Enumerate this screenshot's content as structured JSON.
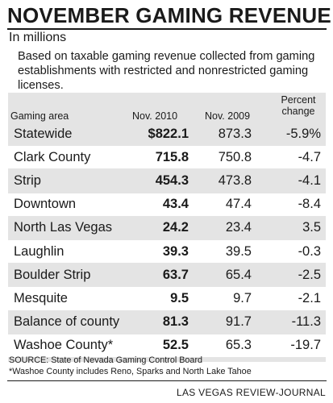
{
  "title": "NOVEMBER GAMING REVENUE",
  "subtitle": "In millions",
  "description": "Based on taxable gaming revenue collected from gaming establishments with restricted and nonrestricted gaming licenses.",
  "headers": {
    "area": "Gaming area",
    "y2010": "Nov. 2010",
    "y2009": "Nov. 2009",
    "pct": "Percent change"
  },
  "chart_data": {
    "type": "table",
    "title": "NOVEMBER GAMING REVENUE",
    "subtitle": "In millions",
    "columns": [
      "Gaming area",
      "Nov. 2010",
      "Nov. 2009",
      "Percent change"
    ],
    "rows": [
      {
        "area": "Statewide",
        "y2010": "$822.1",
        "y2009": "873.3",
        "pct": "-5.9%"
      },
      {
        "area": "Clark County",
        "y2010": "715.8",
        "y2009": "750.8",
        "pct": "-4.7"
      },
      {
        "area": "Strip",
        "y2010": "454.3",
        "y2009": "473.8",
        "pct": "-4.1"
      },
      {
        "area": "Downtown",
        "y2010": "43.4",
        "y2009": "47.4",
        "pct": "-8.4"
      },
      {
        "area": "North Las Vegas",
        "y2010": "24.2",
        "y2009": "23.4",
        "pct": "3.5"
      },
      {
        "area": "Laughlin",
        "y2010": "39.3",
        "y2009": "39.5",
        "pct": "-0.3"
      },
      {
        "area": "Boulder Strip",
        "y2010": "63.7",
        "y2009": "65.4",
        "pct": "-2.5"
      },
      {
        "area": "Mesquite",
        "y2010": "9.5",
        "y2009": "9.7",
        "pct": "-2.1"
      },
      {
        "area": "Balance of county",
        "y2010": "81.3",
        "y2009": "91.7",
        "pct": "-11.3"
      },
      {
        "area": "Washoe County*",
        "y2010": "52.5",
        "y2009": "65.3",
        "pct": "-19.7"
      }
    ]
  },
  "source": "SOURCE: State of Nevada Gaming Control Board",
  "footnote": "*Washoe County includes Reno, Sparks and North Lake Tahoe",
  "credit": "LAS VEGAS REVIEW-JOURNAL"
}
